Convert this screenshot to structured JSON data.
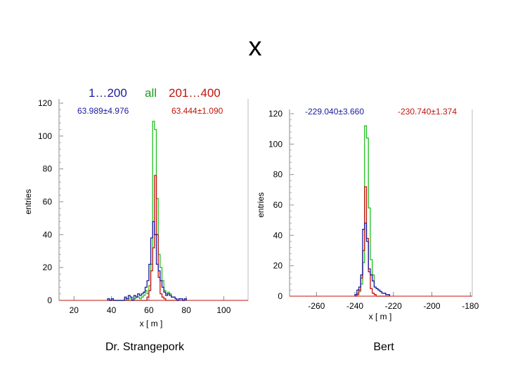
{
  "slide": {
    "title": "x",
    "legend_labels": [
      {
        "text": "1…200",
        "color": "#1a1aa0"
      },
      {
        "text": "all",
        "color": "#1a9a1a"
      },
      {
        "text": "201…400",
        "color": "#c0140c"
      }
    ],
    "captions": [
      "Dr. Strangepork",
      "Bert"
    ]
  },
  "colors": {
    "series_1_200": "#1a1aa0",
    "series_all": "#22c022",
    "series_201_400": "#c0140c"
  },
  "chart_data": [
    {
      "type": "histogram",
      "xlabel": "x [ m ]",
      "ylabel": "entries",
      "xlim": [
        12,
        113
      ],
      "ylim": [
        0,
        120
      ],
      "x_ticks": [
        20,
        40,
        60,
        80,
        100
      ],
      "y_ticks": [
        0,
        20,
        40,
        60,
        80,
        100,
        120
      ],
      "bin_width": 1,
      "grid": false,
      "stat_annotations": [
        {
          "text": "63.989±4.976",
          "color": "#1a1aa0"
        },
        {
          "text": "63.444±1.090",
          "color": "#c0140c"
        }
      ],
      "series": [
        {
          "color": "#22c022",
          "x_start": 38,
          "values": [
            1,
            0,
            1,
            0,
            0,
            0,
            0,
            0,
            0,
            1,
            0,
            1,
            1,
            0,
            1,
            2,
            2,
            1,
            2,
            3,
            6,
            4,
            9,
            22,
            109,
            104,
            62,
            28,
            20,
            12,
            6,
            4,
            5,
            4,
            2,
            2,
            1,
            0,
            1,
            1,
            0,
            1
          ]
        },
        {
          "color": "#c0140c",
          "x_start": 38,
          "values": [
            0,
            0,
            0,
            0,
            0,
            0,
            0,
            0,
            0,
            0,
            0,
            0,
            0,
            0,
            0,
            0,
            0,
            0,
            0,
            0,
            0,
            2,
            6,
            18,
            32,
            76,
            40,
            14,
            4,
            2,
            1,
            0,
            0,
            0,
            0,
            0,
            0,
            0,
            0,
            0,
            0,
            0
          ]
        },
        {
          "color": "#1a1aa0",
          "x_start": 38,
          "values": [
            1,
            0,
            1,
            0,
            0,
            0,
            0,
            0,
            0,
            2,
            1,
            3,
            2,
            0,
            3,
            2,
            4,
            3,
            4,
            5,
            8,
            12,
            22,
            38,
            48,
            40,
            22,
            18,
            12,
            8,
            5,
            3,
            4,
            3,
            2,
            2,
            1,
            0,
            1,
            1,
            0,
            1
          ]
        }
      ]
    },
    {
      "type": "histogram",
      "xlabel": "x [ m ]",
      "ylabel": "entries",
      "xlim": [
        -274,
        -179
      ],
      "ylim": [
        0,
        120
      ],
      "x_ticks": [
        -260,
        -240,
        -220,
        -200,
        -180
      ],
      "y_ticks": [
        0,
        20,
        40,
        60,
        80,
        100,
        120
      ],
      "bin_width": 1,
      "grid": false,
      "stat_annotations": [
        {
          "text": "-229.040±3.660",
          "color": "#1a1aa0"
        },
        {
          "text": "-230.740±1.374",
          "color": "#c0140c"
        }
      ],
      "series": [
        {
          "color": "#22c022",
          "x_start": -240,
          "values": [
            1,
            2,
            3,
            8,
            22,
            112,
            104,
            58,
            24,
            14,
            6,
            5,
            4,
            3,
            2,
            2,
            1,
            1
          ]
        },
        {
          "color": "#c0140c",
          "x_start": -240,
          "values": [
            0,
            1,
            4,
            12,
            30,
            72,
            38,
            16,
            5,
            2,
            1,
            0,
            0,
            0,
            0,
            0,
            0,
            0
          ]
        },
        {
          "color": "#1a1aa0",
          "x_start": -240,
          "values": [
            1,
            4,
            6,
            14,
            44,
            48,
            36,
            18,
            14,
            10,
            6,
            5,
            4,
            3,
            2,
            2,
            1,
            1
          ]
        }
      ]
    }
  ]
}
